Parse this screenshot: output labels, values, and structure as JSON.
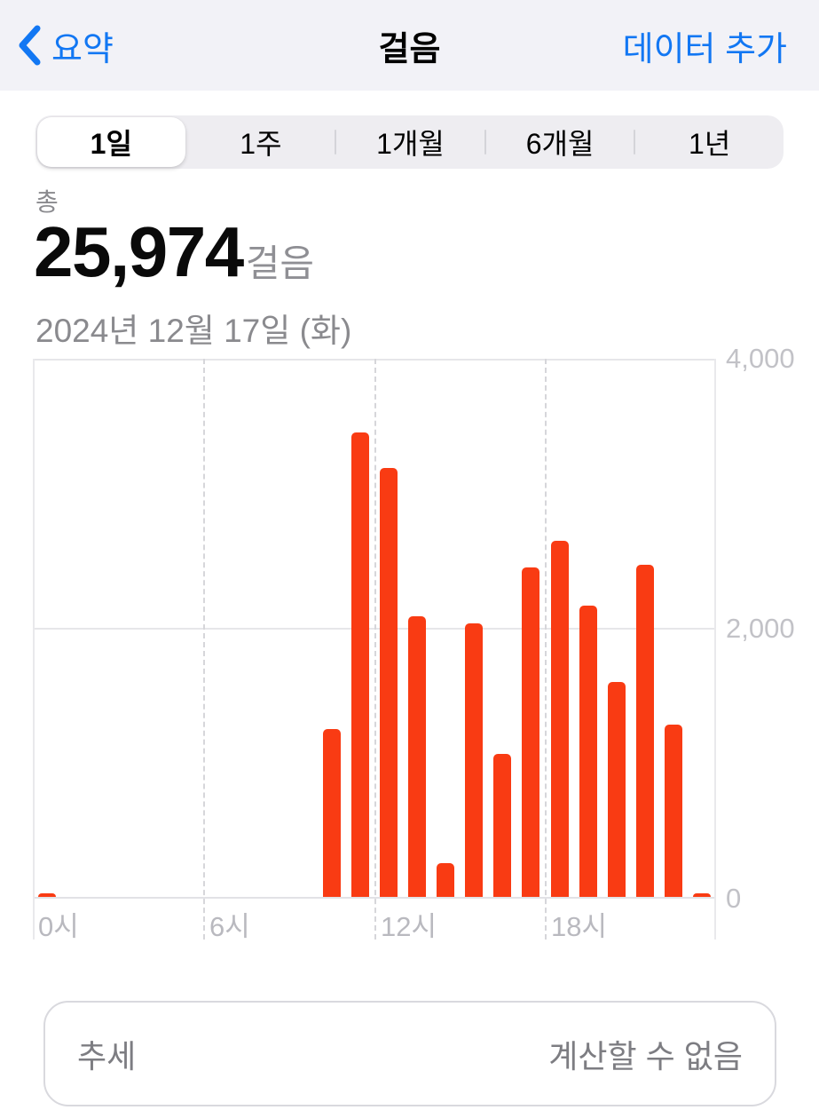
{
  "header": {
    "back_label": "요약",
    "title": "걸음",
    "add_data_label": "데이터 추가"
  },
  "range_tabs": {
    "selected": "1일",
    "items": [
      {
        "label": "1일",
        "selected": true
      },
      {
        "label": "1주",
        "selected": false
      },
      {
        "label": "1개월",
        "selected": false
      },
      {
        "label": "6개월",
        "selected": false
      },
      {
        "label": "1년",
        "selected": false
      }
    ]
  },
  "summary": {
    "total_label": "총",
    "value": "25,974",
    "unit": "걸음",
    "date": "2024년 12월 17일 (화)"
  },
  "chart_data": {
    "type": "bar",
    "x_unit": "hour_of_day",
    "hours": [
      0,
      1,
      2,
      3,
      4,
      5,
      6,
      7,
      8,
      9,
      10,
      11,
      12,
      13,
      14,
      15,
      16,
      17,
      18,
      19,
      20,
      21,
      22,
      23
    ],
    "values": [
      24,
      0,
      0,
      0,
      0,
      0,
      0,
      0,
      0,
      0,
      1248,
      3455,
      3190,
      2085,
      248,
      2030,
      1060,
      2450,
      2650,
      2165,
      1595,
      2470,
      1280,
      24
    ],
    "ylim": [
      0,
      4000
    ],
    "y_ticks": [
      0,
      2000,
      4000
    ],
    "y_tick_labels": [
      "0",
      "2,000",
      "4,000"
    ],
    "x_ticks_hours": [
      0,
      6,
      12,
      18
    ],
    "x_tick_labels": [
      "0시",
      "6시",
      "12시",
      "18시"
    ],
    "bar_color": "#f93b13",
    "grid": true,
    "legend": "none",
    "y_axis_side": "right"
  },
  "trend_card": {
    "label": "추세",
    "value": "계산할 수 없음"
  },
  "colors": {
    "accent_blue": "#1277f3",
    "bar_orange_red": "#f93b13",
    "header_bg": "#f2f2f7",
    "gray_text": "#8a8a8e",
    "axis_label_gray": "#bfbfc4"
  }
}
